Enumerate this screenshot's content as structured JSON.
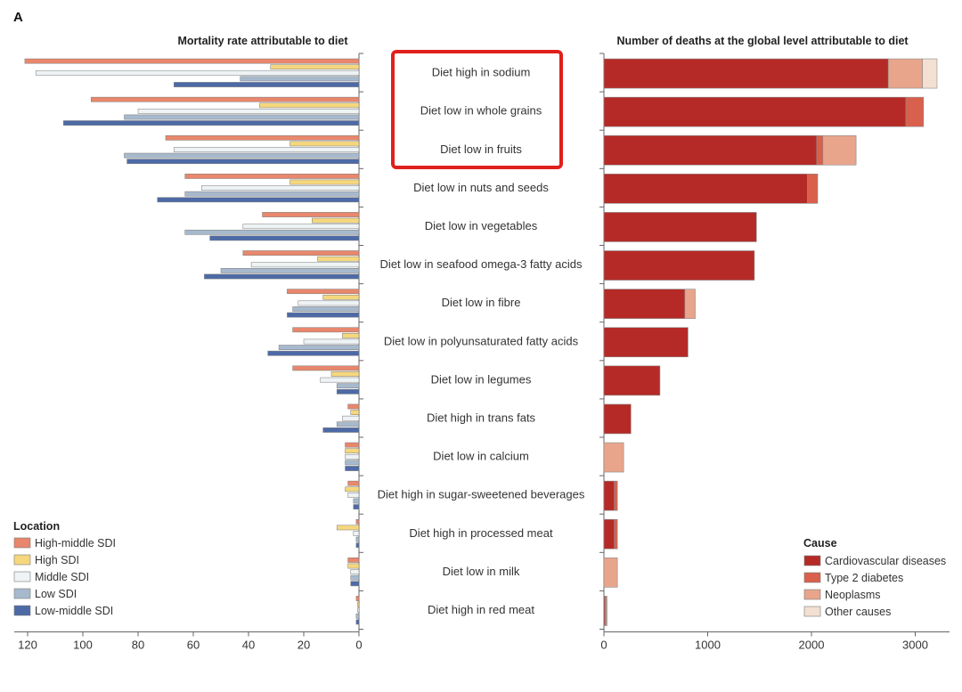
{
  "panel_letter": "A",
  "colors": {
    "high_middle_sdi": "#e8876c",
    "high_sdi": "#f5d77d",
    "middle_sdi": "#eef3f5",
    "low_sdi": "#a7b9cd",
    "low_middle_sdi": "#4d6aa6",
    "cardiovascular": "#b52a26",
    "type2_diabetes": "#d9604c",
    "neoplasms": "#e8a58c",
    "other_causes": "#f3e0d2",
    "highlight_box": "#e0201c"
  },
  "chart_data": [
    {
      "type": "bar",
      "orientation": "horizontal",
      "title": "Mortality rate attributable to diet",
      "xlim": [
        0,
        120
      ],
      "x_reversed": true,
      "x_ticks": [
        "120",
        "100",
        "80",
        "60",
        "40",
        "20",
        "0"
      ],
      "categories": [
        "Diet high in sodium",
        "Diet low in whole grains",
        "Diet low in fruits",
        "Diet low in nuts and seeds",
        "Diet low in vegetables",
        "Diet low in seafood omega-3 fatty acids",
        "Diet low in fibre",
        "Diet low in polyunsaturated fatty acids",
        "Diet low in legumes",
        "Diet high in trans fats",
        "Diet low in calcium",
        "Diet high in sugar-sweetened beverages",
        "Diet high in processed meat",
        "Diet low in milk",
        "Diet high in red meat"
      ],
      "legend_title": "Location",
      "legend_position": "bottom-left",
      "series": [
        {
          "name": "High-middle SDI",
          "color_key": "high_middle_sdi",
          "values": [
            121,
            97,
            70,
            63,
            35,
            42,
            26,
            24,
            24,
            4,
            5,
            4,
            1,
            4,
            1
          ]
        },
        {
          "name": "High SDI",
          "color_key": "high_sdi",
          "values": [
            32,
            36,
            25,
            25,
            17,
            15,
            13,
            6,
            10,
            3,
            5,
            5,
            8,
            4,
            0.5
          ]
        },
        {
          "name": "Middle SDI",
          "color_key": "middle_sdi",
          "values": [
            117,
            80,
            67,
            57,
            42,
            39,
            22,
            20,
            14,
            6,
            5,
            4,
            2,
            3,
            0.5
          ]
        },
        {
          "name": "Low SDI",
          "color_key": "low_sdi",
          "values": [
            43,
            85,
            85,
            63,
            63,
            50,
            24,
            29,
            8,
            8,
            5,
            2,
            1,
            3,
            1
          ]
        },
        {
          "name": "Low-middle SDI",
          "color_key": "low_middle_sdi",
          "values": [
            67,
            107,
            84,
            73,
            54,
            56,
            26,
            33,
            8,
            13,
            5,
            2,
            1,
            3,
            1
          ]
        }
      ]
    },
    {
      "type": "bar",
      "orientation": "horizontal",
      "stacked": true,
      "title": "Number of deaths at the global level attributable to diet",
      "xlim": [
        0,
        3300
      ],
      "x_ticks": [
        "0",
        "1000",
        "2000",
        "3000"
      ],
      "categories": [
        "Diet high in sodium",
        "Diet low in whole grains",
        "Diet low in fruits",
        "Diet low in nuts and seeds",
        "Diet low in vegetables",
        "Diet low in seafood omega-3 fatty acids",
        "Diet low in fibre",
        "Diet low in polyunsaturated fatty acids",
        "Diet low in legumes",
        "Diet high in trans fats",
        "Diet low in calcium",
        "Diet high in sugar-sweetened beverages",
        "Diet high in processed meat",
        "Diet low in milk",
        "Diet high in red meat"
      ],
      "legend_title": "Cause",
      "legend_position": "bottom-right",
      "series": [
        {
          "name": "Cardiovascular diseases",
          "color_key": "cardiovascular",
          "values": [
            2740,
            2910,
            2050,
            1960,
            1470,
            1450,
            780,
            810,
            540,
            260,
            0,
            100,
            100,
            0,
            10
          ]
        },
        {
          "name": "Type 2 diabetes",
          "color_key": "type2_diabetes",
          "values": [
            0,
            170,
            60,
            100,
            0,
            0,
            0,
            0,
            0,
            0,
            0,
            30,
            30,
            0,
            10
          ]
        },
        {
          "name": "Neoplasms",
          "color_key": "neoplasms",
          "values": [
            330,
            0,
            320,
            0,
            0,
            0,
            100,
            0,
            0,
            0,
            190,
            0,
            0,
            130,
            10
          ]
        },
        {
          "name": "Other causes",
          "color_key": "other_causes",
          "values": [
            140,
            0,
            0,
            0,
            0,
            0,
            0,
            0,
            0,
            0,
            0,
            0,
            0,
            0,
            0
          ]
        }
      ]
    }
  ]
}
